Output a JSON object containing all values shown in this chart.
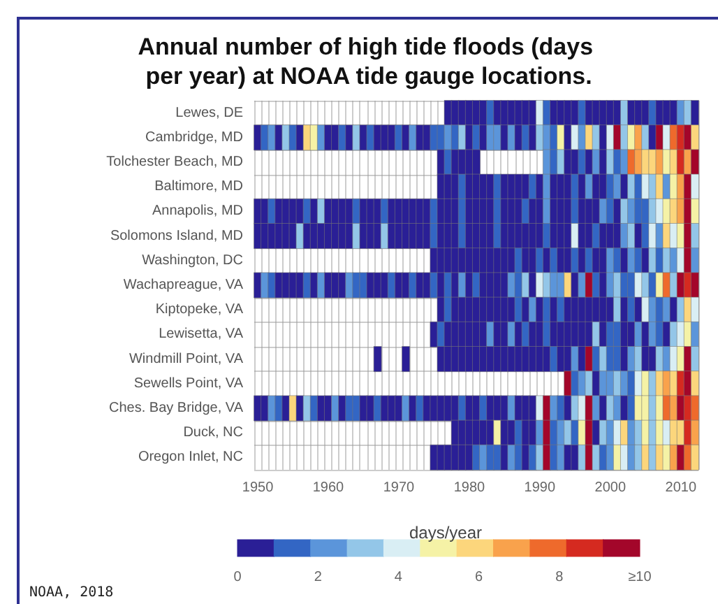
{
  "chart_data": {
    "type": "heatmap",
    "title": "Annual number of high tide floods (days per year) at NOAA tide gauge locations.",
    "clabel": "days/year",
    "annotations": [
      "NOAA, 2018"
    ],
    "grid": true,
    "categories": [
      "1950",
      null,
      null,
      null,
      null,
      null,
      null,
      null,
      null,
      null,
      "1960",
      null,
      null,
      null,
      null,
      null,
      null,
      null,
      null,
      null,
      "1970",
      null,
      null,
      null,
      null,
      null,
      null,
      null,
      null,
      null,
      "1980",
      null,
      null,
      null,
      null,
      null,
      null,
      null,
      null,
      null,
      "1990",
      null,
      null,
      null,
      null,
      null,
      null,
      null,
      null,
      null,
      "2000",
      null,
      null,
      null,
      null,
      null,
      null,
      null,
      null,
      null,
      "2010",
      null,
      null
    ],
    "y_categories": [
      "Lewes, DE",
      "Cambridge, MD",
      "Tolchester Beach, MD",
      "Baltimore, MD",
      "Annapolis, MD",
      "Solomons Island, MD",
      "Washington, DC",
      "Wachapreague, VA",
      "Kiptopeke, VA",
      "Lewisetta, VA",
      "Windmill Point, VA",
      "Sewells Point, VA",
      "Ches. Bay Bridge, VA",
      "Duck, NC",
      "Oregon Inlet, NC"
    ],
    "cells": [
      [
        null,
        null,
        null,
        null,
        null,
        null,
        null,
        null,
        null,
        null,
        null,
        null,
        null,
        null,
        null,
        null,
        null,
        null,
        null,
        null,
        null,
        null,
        null,
        null,
        null,
        null,
        null,
        0,
        0,
        0,
        0,
        0,
        0,
        1,
        0,
        0,
        0,
        0,
        0,
        0,
        4,
        1,
        0,
        0,
        0,
        0,
        1,
        0,
        0,
        0,
        0,
        0,
        3,
        0,
        0,
        0,
        1,
        0,
        0,
        0,
        2,
        3,
        0
      ],
      [
        0,
        1,
        2,
        0,
        3,
        1,
        0,
        6,
        5,
        2,
        0,
        0,
        1,
        0,
        3,
        0,
        1,
        0,
        0,
        0,
        1,
        0,
        2,
        0,
        0,
        1,
        1,
        2,
        1,
        3,
        0,
        1,
        0,
        2,
        2,
        0,
        2,
        0,
        1,
        0,
        3,
        2,
        1,
        5,
        0,
        4,
        2,
        6,
        3,
        0,
        4,
        10,
        3,
        5,
        7,
        3,
        0,
        10,
        4,
        8,
        9,
        10,
        6
      ],
      [
        null,
        null,
        null,
        null,
        null,
        null,
        null,
        null,
        null,
        null,
        null,
        null,
        null,
        null,
        null,
        null,
        null,
        null,
        null,
        null,
        null,
        null,
        null,
        null,
        null,
        null,
        0,
        1,
        0,
        0,
        0,
        0,
        null,
        null,
        null,
        null,
        null,
        null,
        null,
        null,
        null,
        2,
        1,
        3,
        0,
        0,
        1,
        0,
        2,
        0,
        3,
        1,
        2,
        8,
        7,
        6,
        6,
        7,
        5,
        6,
        9,
        7,
        10
      ],
      [
        null,
        null,
        null,
        null,
        null,
        null,
        null,
        null,
        null,
        null,
        null,
        null,
        null,
        null,
        null,
        null,
        null,
        null,
        null,
        null,
        null,
        null,
        null,
        null,
        null,
        null,
        0,
        0,
        0,
        1,
        0,
        0,
        0,
        0,
        1,
        0,
        0,
        0,
        0,
        1,
        0,
        2,
        0,
        0,
        0,
        1,
        0,
        2,
        0,
        0,
        1,
        2,
        0,
        3,
        1,
        4,
        3,
        6,
        2,
        5,
        7,
        10,
        4
      ],
      [
        0,
        0,
        1,
        0,
        0,
        0,
        0,
        1,
        0,
        3,
        0,
        0,
        0,
        0,
        1,
        0,
        0,
        0,
        1,
        0,
        0,
        0,
        0,
        0,
        0,
        1,
        0,
        0,
        0,
        1,
        0,
        0,
        0,
        0,
        1,
        0,
        0,
        0,
        1,
        0,
        0,
        2,
        0,
        0,
        0,
        1,
        0,
        0,
        0,
        2,
        1,
        0,
        3,
        2,
        1,
        1,
        3,
        4,
        5,
        6,
        7,
        10,
        5
      ],
      [
        0,
        0,
        0,
        0,
        0,
        0,
        3,
        0,
        0,
        0,
        0,
        0,
        0,
        0,
        3,
        0,
        0,
        0,
        3,
        0,
        0,
        0,
        0,
        0,
        0,
        1,
        0,
        0,
        0,
        1,
        0,
        0,
        0,
        0,
        1,
        0,
        0,
        0,
        0,
        0,
        0,
        1,
        0,
        0,
        0,
        4,
        0,
        0,
        1,
        0,
        0,
        0,
        2,
        3,
        0,
        1,
        4,
        2,
        6,
        4,
        5,
        10,
        3
      ],
      [
        null,
        null,
        null,
        null,
        null,
        null,
        null,
        null,
        null,
        null,
        null,
        null,
        null,
        null,
        null,
        null,
        null,
        null,
        null,
        null,
        null,
        null,
        null,
        null,
        null,
        0,
        0,
        0,
        0,
        0,
        0,
        0,
        0,
        0,
        0,
        0,
        0,
        1,
        0,
        0,
        1,
        0,
        1,
        0,
        0,
        1,
        0,
        1,
        0,
        0,
        2,
        1,
        0,
        2,
        1,
        0,
        3,
        1,
        3,
        2,
        4,
        10,
        2
      ],
      [
        0,
        2,
        1,
        0,
        0,
        0,
        0,
        1,
        0,
        2,
        0,
        0,
        0,
        2,
        1,
        1,
        0,
        0,
        0,
        1,
        0,
        0,
        1,
        0,
        0,
        1,
        0,
        1,
        0,
        2,
        0,
        1,
        0,
        0,
        0,
        0,
        2,
        1,
        3,
        0,
        4,
        3,
        2,
        2,
        6,
        0,
        2,
        10,
        1,
        0,
        2,
        3,
        1,
        1,
        4,
        3,
        1,
        5,
        8,
        3,
        10,
        9,
        10
      ],
      [
        null,
        null,
        null,
        null,
        null,
        null,
        null,
        null,
        null,
        null,
        null,
        null,
        null,
        null,
        null,
        null,
        null,
        null,
        null,
        null,
        null,
        null,
        null,
        null,
        null,
        null,
        0,
        1,
        0,
        0,
        0,
        0,
        0,
        0,
        0,
        0,
        0,
        1,
        0,
        2,
        0,
        1,
        0,
        1,
        0,
        0,
        0,
        0,
        0,
        0,
        0,
        3,
        0,
        1,
        0,
        4,
        2,
        1,
        2,
        0,
        3,
        6,
        4
      ],
      [
        null,
        null,
        null,
        null,
        null,
        null,
        null,
        null,
        null,
        null,
        null,
        null,
        null,
        null,
        null,
        null,
        null,
        null,
        null,
        null,
        null,
        null,
        null,
        null,
        null,
        0,
        1,
        0,
        0,
        0,
        0,
        0,
        0,
        2,
        0,
        0,
        2,
        0,
        1,
        0,
        0,
        1,
        0,
        0,
        0,
        0,
        0,
        0,
        3,
        0,
        1,
        1,
        0,
        0,
        2,
        0,
        2,
        1,
        0,
        3,
        4,
        5,
        2
      ],
      [
        null,
        null,
        null,
        null,
        null,
        null,
        null,
        null,
        null,
        null,
        null,
        null,
        null,
        null,
        null,
        null,
        null,
        0,
        null,
        null,
        null,
        0,
        null,
        null,
        null,
        null,
        0,
        0,
        0,
        0,
        0,
        0,
        0,
        0,
        0,
        0,
        0,
        0,
        0,
        0,
        0,
        0,
        1,
        0,
        0,
        2,
        0,
        10,
        1,
        3,
        1,
        1,
        0,
        2,
        3,
        0,
        0,
        3,
        2,
        4,
        5,
        10,
        3
      ],
      [
        null,
        null,
        null,
        null,
        null,
        null,
        null,
        null,
        null,
        null,
        null,
        null,
        null,
        null,
        null,
        null,
        null,
        null,
        null,
        null,
        null,
        null,
        null,
        null,
        null,
        null,
        null,
        null,
        null,
        null,
        null,
        null,
        null,
        null,
        null,
        null,
        null,
        null,
        null,
        null,
        null,
        null,
        null,
        null,
        10,
        1,
        2,
        3,
        0,
        2,
        2,
        3,
        2,
        1,
        4,
        5,
        3,
        6,
        7,
        6,
        9,
        10,
        6
      ],
      [
        0,
        0,
        2,
        1,
        0,
        6,
        0,
        3,
        1,
        0,
        0,
        2,
        0,
        1,
        1,
        0,
        0,
        1,
        0,
        0,
        0,
        2,
        0,
        1,
        0,
        0,
        0,
        0,
        0,
        1,
        0,
        0,
        1,
        0,
        0,
        0,
        2,
        0,
        0,
        0,
        4,
        10,
        2,
        1,
        0,
        3,
        4,
        10,
        2,
        0,
        3,
        2,
        0,
        1,
        5,
        5,
        3,
        5,
        8,
        7,
        10,
        9,
        8
      ],
      [
        null,
        null,
        null,
        null,
        null,
        null,
        null,
        null,
        null,
        null,
        null,
        null,
        null,
        null,
        null,
        null,
        null,
        null,
        null,
        null,
        null,
        null,
        null,
        null,
        null,
        null,
        null,
        null,
        0,
        0,
        0,
        0,
        0,
        0,
        5,
        0,
        0,
        1,
        0,
        0,
        2,
        10,
        1,
        2,
        3,
        1,
        5,
        10,
        0,
        3,
        2,
        4,
        6,
        2,
        3,
        5,
        3,
        5,
        4,
        6,
        6,
        9,
        7
      ],
      [
        null,
        null,
        null,
        null,
        null,
        null,
        null,
        null,
        null,
        null,
        null,
        null,
        null,
        null,
        null,
        null,
        null,
        null,
        null,
        null,
        null,
        null,
        null,
        null,
        null,
        0,
        0,
        0,
        0,
        0,
        0,
        1,
        2,
        1,
        1,
        0,
        2,
        1,
        0,
        1,
        3,
        10,
        1,
        2,
        0,
        0,
        3,
        10,
        3,
        1,
        2,
        5,
        4,
        2,
        3,
        6,
        3,
        6,
        5,
        7,
        10,
        8,
        6
      ]
    ],
    "colors": [
      "#2a1f96",
      "#3366c4",
      "#5b95da",
      "#93c6e8",
      "#d9eef4",
      "#f5f2a6",
      "#fcd67c",
      "#f9a24c",
      "#ee6a2c",
      "#d52a20",
      "#a3062a"
    ],
    "clim": [
      0,
      10
    ],
    "cticks": [
      0,
      2,
      4,
      6,
      8,
      {
        "value": 10,
        "label": "≥10"
      }
    ]
  }
}
